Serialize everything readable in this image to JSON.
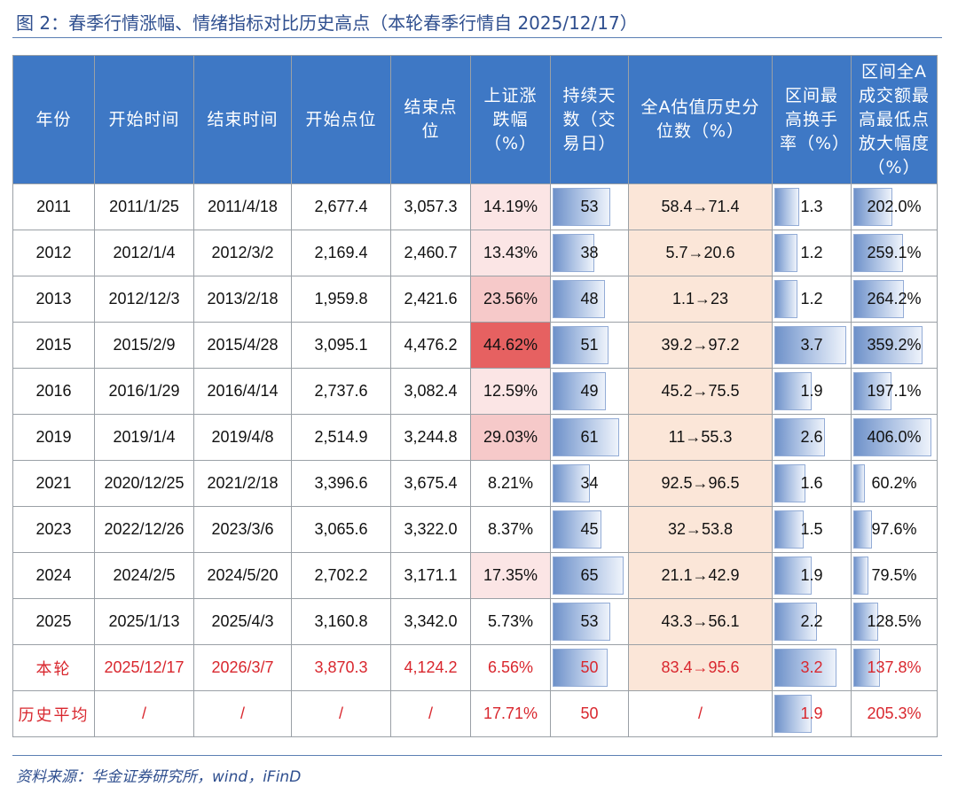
{
  "title": "图 2：春季行情涨幅、情绪指标对比历史高点（本轮春季行情自 2025/12/17）",
  "source": "资料来源：华金证券研究所，wind，iFinD",
  "headers": {
    "year": "年份",
    "start_date": "开始时间",
    "end_date": "结束时间",
    "start_pt": "开始点位",
    "end_pt": "结束点位",
    "sh_change": "上证涨跌幅（%）",
    "duration": "持续天数（交易日）",
    "valuation": "全A估值历史分位数（%）",
    "turnover": "区间最高换手率（%）",
    "volume_amp": "区间全A成交额最高最低点放大幅度（%）"
  },
  "rows": [
    {
      "year": "2011",
      "start": "2011/1/25",
      "end": "2011/4/18",
      "start_pt": "2,677.4",
      "end_pt": "3,057.3",
      "change": "14.19%",
      "days": "53",
      "val": "58.4→71.4",
      "turn": "1.3",
      "amp": "202.0%"
    },
    {
      "year": "2012",
      "start": "2012/1/4",
      "end": "2012/3/2",
      "start_pt": "2,169.4",
      "end_pt": "2,460.7",
      "change": "13.43%",
      "days": "38",
      "val": "5.7→20.6",
      "turn": "1.2",
      "amp": "259.1%"
    },
    {
      "year": "2013",
      "start": "2012/12/3",
      "end": "2013/2/18",
      "start_pt": "1,959.8",
      "end_pt": "2,421.6",
      "change": "23.56%",
      "days": "48",
      "val": "1.1→23",
      "turn": "1.2",
      "amp": "264.2%"
    },
    {
      "year": "2015",
      "start": "2015/2/9",
      "end": "2015/4/28",
      "start_pt": "3,095.1",
      "end_pt": "4,476.2",
      "change": "44.62%",
      "days": "51",
      "val": "39.2→97.2",
      "turn": "3.7",
      "amp": "359.2%"
    },
    {
      "year": "2016",
      "start": "2016/1/29",
      "end": "2016/4/14",
      "start_pt": "2,737.6",
      "end_pt": "3,082.4",
      "change": "12.59%",
      "days": "49",
      "val": "45.2→75.5",
      "turn": "1.9",
      "amp": "197.1%"
    },
    {
      "year": "2019",
      "start": "2019/1/4",
      "end": "2019/4/8",
      "start_pt": "2,514.9",
      "end_pt": "3,244.8",
      "change": "29.03%",
      "days": "61",
      "val": "11→55.3",
      "turn": "2.6",
      "amp": "406.0%"
    },
    {
      "year": "2021",
      "start": "2020/12/25",
      "end": "2021/2/18",
      "start_pt": "3,396.6",
      "end_pt": "3,675.4",
      "change": "8.21%",
      "days": "34",
      "val": "92.5→96.5",
      "turn": "1.6",
      "amp": "60.2%"
    },
    {
      "year": "2023",
      "start": "2022/12/26",
      "end": "2023/3/6",
      "start_pt": "3,065.6",
      "end_pt": "3,322.0",
      "change": "8.37%",
      "days": "45",
      "val": "32→53.8",
      "turn": "1.5",
      "amp": "97.6%"
    },
    {
      "year": "2024",
      "start": "2024/2/5",
      "end": "2024/5/20",
      "start_pt": "2,702.2",
      "end_pt": "3,171.1",
      "change": "17.35%",
      "days": "65",
      "val": "21.1→42.9",
      "turn": "1.9",
      "amp": "79.5%"
    },
    {
      "year": "2025",
      "start": "2025/1/13",
      "end": "2025/4/3",
      "start_pt": "3,160.8",
      "end_pt": "3,342.0",
      "change": "5.73%",
      "days": "53",
      "val": "43.3→56.1",
      "turn": "2.2",
      "amp": "128.5%"
    },
    {
      "year": "本轮",
      "start": "2025/12/17",
      "end": "2026/3/7",
      "start_pt": "3,870.3",
      "end_pt": "4,124.2",
      "change": "6.56%",
      "days": "50",
      "val": "83.4→95.6",
      "turn": "3.2",
      "amp": "137.8%"
    },
    {
      "year": "历史平均",
      "start": "/",
      "end": "/",
      "start_pt": "/",
      "end_pt": "/",
      "change": "17.71%",
      "days": "50",
      "val": "/",
      "turn": "1.9",
      "amp": "205.3%"
    }
  ]
}
